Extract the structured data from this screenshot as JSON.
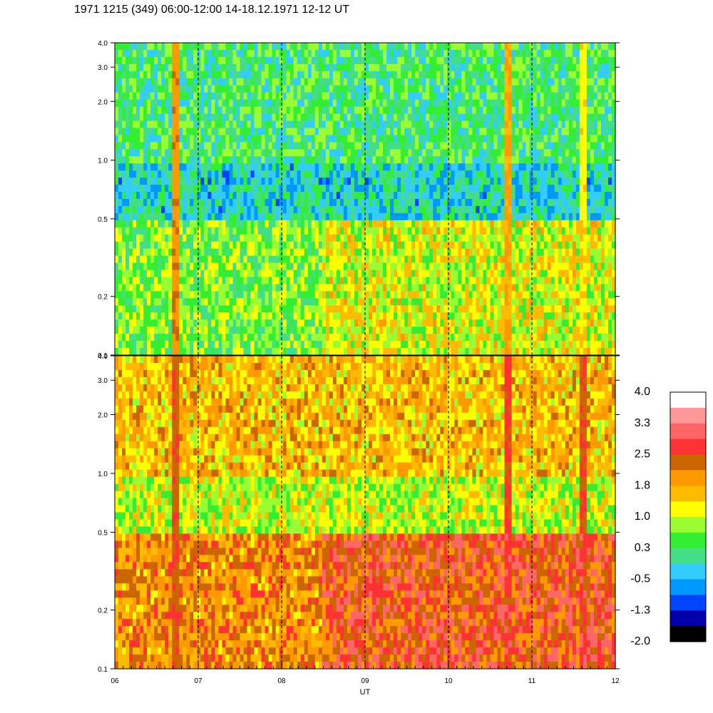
{
  "chart_data": {
    "type": "heatmap",
    "title": "1971 1215 (349) 06:00-12:00 14-18.12.1971  12-12 UT",
    "xlabel": "UT",
    "x_ticks": [
      "06",
      "07",
      "08",
      "09",
      "10",
      "11",
      "12"
    ],
    "x_range": [
      6,
      12
    ],
    "y_scale": "log",
    "y_range": [
      0.1,
      4.0
    ],
    "y_ticks": [
      "0.1",
      "0.2",
      "0.5",
      "1.0",
      "2.0",
      "3.0",
      "4.0"
    ],
    "grid": "dashed vertical lines at each hour",
    "panels": [
      {
        "name": "upper",
        "dominant_levels_by_frequency": [
          {
            "y_range": [
              1.0,
              4.0
            ],
            "level": 0.3
          },
          {
            "y_range": [
              0.5,
              1.0
            ],
            "level": -0.2
          },
          {
            "y_range": [
              0.1,
              0.5
            ],
            "level": 0.6
          }
        ],
        "features": [
          {
            "x": 6.72,
            "level": 2.2
          },
          {
            "x": 10.7,
            "level": 2.0
          },
          {
            "x": 11.6,
            "level": 1.4
          }
        ]
      },
      {
        "name": "lower",
        "dominant_levels_by_frequency": [
          {
            "y_range": [
              1.0,
              4.0
            ],
            "level": 1.6
          },
          {
            "y_range": [
              0.5,
              1.0
            ],
            "level": 1.0
          },
          {
            "y_range": [
              0.1,
              0.5
            ],
            "level": 2.0
          }
        ],
        "features": [
          {
            "x": 6.72,
            "level": 2.6
          },
          {
            "x": 10.7,
            "level": 2.8
          },
          {
            "x": 11.6,
            "level": 2.7
          }
        ]
      }
    ],
    "colorbar": {
      "labels": [
        "4.0",
        "3.3",
        "2.5",
        "1.8",
        "1.0",
        "0.3",
        "-0.5",
        "-1.3",
        "-2.0"
      ],
      "colors": [
        "#ffffff",
        "#ff9999",
        "#ff6666",
        "#ff3333",
        "#cc6600",
        "#ff9900",
        "#ffbb00",
        "#ffff00",
        "#99ff33",
        "#33ee33",
        "#44dd88",
        "#33ccff",
        "#0099ff",
        "#0044ff",
        "#0000aa",
        "#000000"
      ]
    }
  }
}
